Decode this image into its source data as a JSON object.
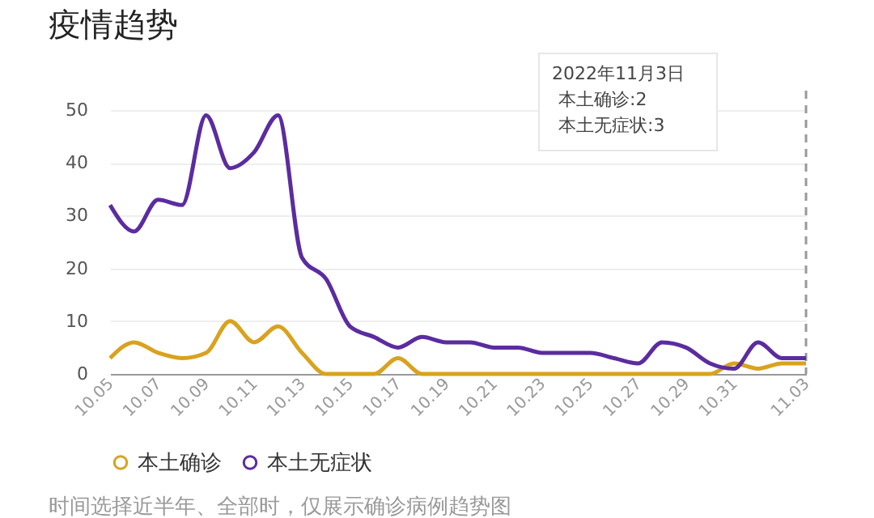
{
  "chart_data": {
    "type": "line",
    "title": "疫情趋势",
    "categories": [
      "10.05",
      null,
      "10.07",
      null,
      "10.09",
      null,
      "10.11",
      null,
      "10.13",
      null,
      "10.15",
      null,
      "10.17",
      null,
      "10.19",
      null,
      "10.21",
      null,
      "10.23",
      null,
      "10.25",
      null,
      "10.27",
      null,
      "10.29",
      null,
      "10.31",
      null,
      null,
      "11.03"
    ],
    "series": [
      {
        "name": "本土确诊",
        "color": "#d9a21f",
        "values": [
          3,
          6,
          4,
          3,
          4,
          10,
          6,
          9,
          4,
          0,
          0,
          0,
          3,
          0,
          0,
          0,
          0,
          0,
          0,
          0,
          0,
          0,
          0,
          0,
          0,
          0,
          2,
          1,
          2,
          2
        ]
      },
      {
        "name": "本土无症状",
        "color": "#5b2ca0",
        "values": [
          32,
          27,
          33,
          32,
          49,
          39,
          42,
          49,
          22,
          18,
          9,
          7,
          5,
          7,
          6,
          6,
          5,
          5,
          4,
          4,
          4,
          3,
          2,
          6,
          5,
          2,
          1,
          6,
          3,
          3
        ]
      }
    ],
    "ylim": [
      0,
      50
    ],
    "yticks": [
      0,
      10,
      20,
      30,
      40,
      50
    ],
    "grid": "y",
    "legend": "bottom",
    "marker": "none",
    "line_style": "solid",
    "ref_lines": [
      {
        "axis": "x",
        "value": "11.03",
        "line_style": "dashed",
        "color": "#999999"
      }
    ],
    "annotations": [
      "2022年11月3日",
      "本土确诊:2",
      "本土无症状:3",
      "时间选择近半年、全部时，仅展示确诊病例趋势图"
    ]
  }
}
